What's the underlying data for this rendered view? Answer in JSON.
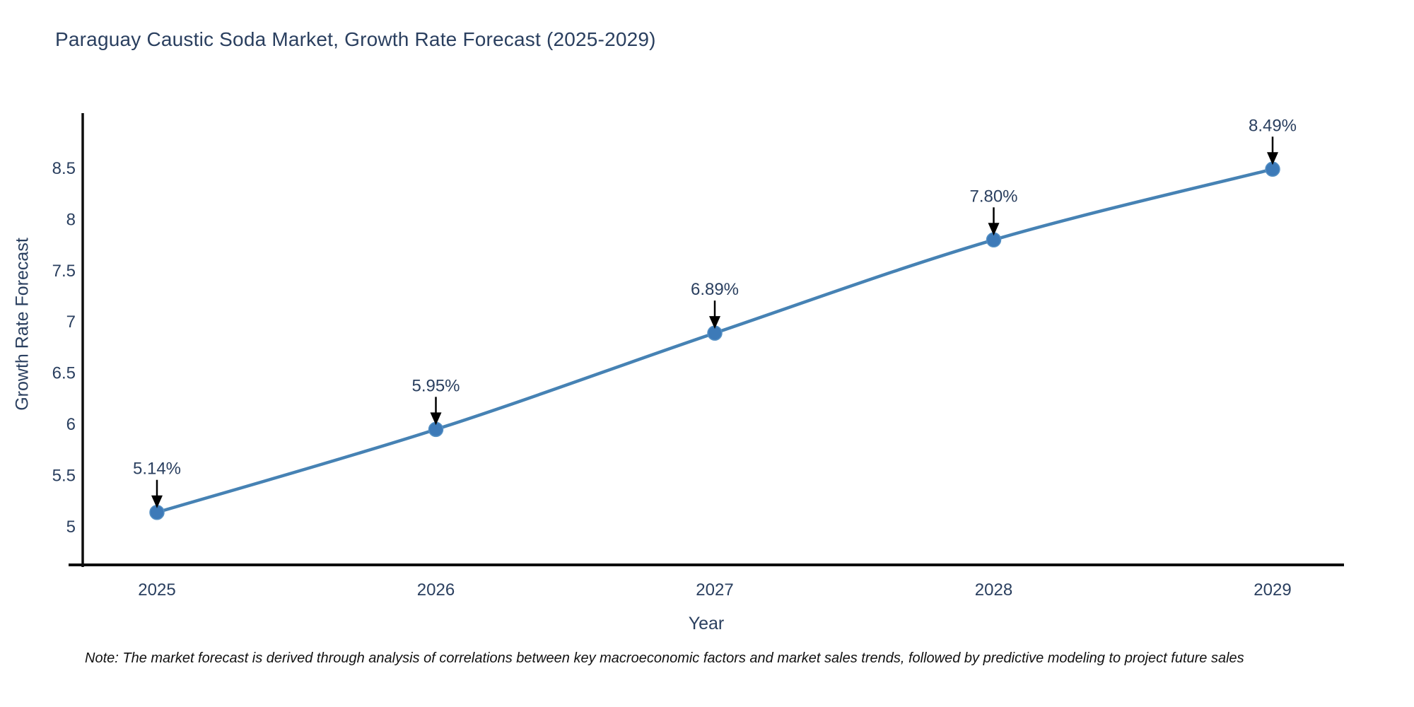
{
  "title": "Paraguay Caustic Soda Market, Growth Rate Forecast (2025-2029)",
  "note": "Note: The market forecast is derived through analysis of correlations between key macroeconomic factors and market sales trends, followed by predictive modeling to project future sales",
  "colors": {
    "title_text": "#2a3f5f",
    "tick_text": "#2a3f5f",
    "axis_line": "#0d0d0d",
    "series_line": "#4682b4",
    "marker_fill": "#3d7ab8",
    "marker_edge": "#5590c4",
    "annotation_text": "#2a3f5f",
    "arrow": "#000000",
    "background": "#ffffff",
    "note_text": "#111111"
  },
  "chart_data": {
    "type": "line",
    "title": "Paraguay Caustic Soda Market, Growth Rate Forecast (2025-2029)",
    "x": [
      2025,
      2026,
      2027,
      2028,
      2029
    ],
    "y": [
      5.14,
      5.95,
      6.89,
      7.8,
      8.49
    ],
    "series": [
      {
        "name": "Growth Rate Forecast",
        "values": [
          5.14,
          5.95,
          6.89,
          7.8,
          8.49
        ],
        "point_labels": [
          "5.14%",
          "5.95%",
          "6.89%",
          "7.80%",
          "8.49%"
        ]
      }
    ],
    "xlabel": "Year",
    "ylabel": "Growth Rate Forecast",
    "xticks": [
      "2025",
      "2026",
      "2027",
      "2028",
      "2029"
    ],
    "yticks": [
      5,
      5.5,
      6,
      6.5,
      7,
      7.5,
      8,
      8.5
    ],
    "ytick_labels": [
      "5",
      "5.5",
      "6",
      "6.5",
      "7",
      "7.5",
      "8",
      "8.5"
    ],
    "ylim": [
      4.6,
      9.05
    ],
    "grid": false,
    "legend_position": "none",
    "line_shape": "spline",
    "marker": "circle",
    "annotation_arrows": true
  }
}
